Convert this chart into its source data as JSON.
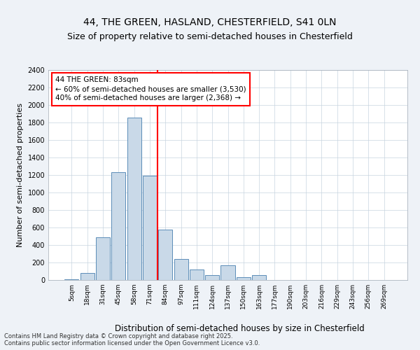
{
  "title1": "44, THE GREEN, HASLAND, CHESTERFIELD, S41 0LN",
  "title2": "Size of property relative to semi-detached houses in Chesterfield",
  "xlabel": "Distribution of semi-detached houses by size in Chesterfield",
  "ylabel": "Number of semi-detached properties",
  "categories": [
    "5sqm",
    "18sqm",
    "31sqm",
    "45sqm",
    "58sqm",
    "71sqm",
    "84sqm",
    "97sqm",
    "111sqm",
    "124sqm",
    "137sqm",
    "150sqm",
    "163sqm",
    "177sqm",
    "190sqm",
    "203sqm",
    "216sqm",
    "229sqm",
    "243sqm",
    "256sqm",
    "269sqm"
  ],
  "values": [
    10,
    80,
    490,
    1230,
    1860,
    1190,
    580,
    240,
    120,
    60,
    170,
    30,
    60,
    0,
    0,
    0,
    0,
    0,
    0,
    0,
    0
  ],
  "bar_color": "#c9d9e8",
  "bar_edge_color": "#5b8db8",
  "vline_index": 6,
  "vline_color": "red",
  "annotation_text": "44 THE GREEN: 83sqm\n← 60% of semi-detached houses are smaller (3,530)\n40% of semi-detached houses are larger (2,368) →",
  "annotation_fontsize": 7.5,
  "ylim": [
    0,
    2400
  ],
  "yticks": [
    0,
    200,
    400,
    600,
    800,
    1000,
    1200,
    1400,
    1600,
    1800,
    2000,
    2200,
    2400
  ],
  "footnote": "Contains HM Land Registry data © Crown copyright and database right 2025.\nContains public sector information licensed under the Open Government Licence v3.0.",
  "background_color": "#eef2f7",
  "plot_background": "#ffffff",
  "title1_fontsize": 10,
  "title2_fontsize": 9,
  "ylabel_fontsize": 8,
  "xlabel_fontsize": 8.5
}
